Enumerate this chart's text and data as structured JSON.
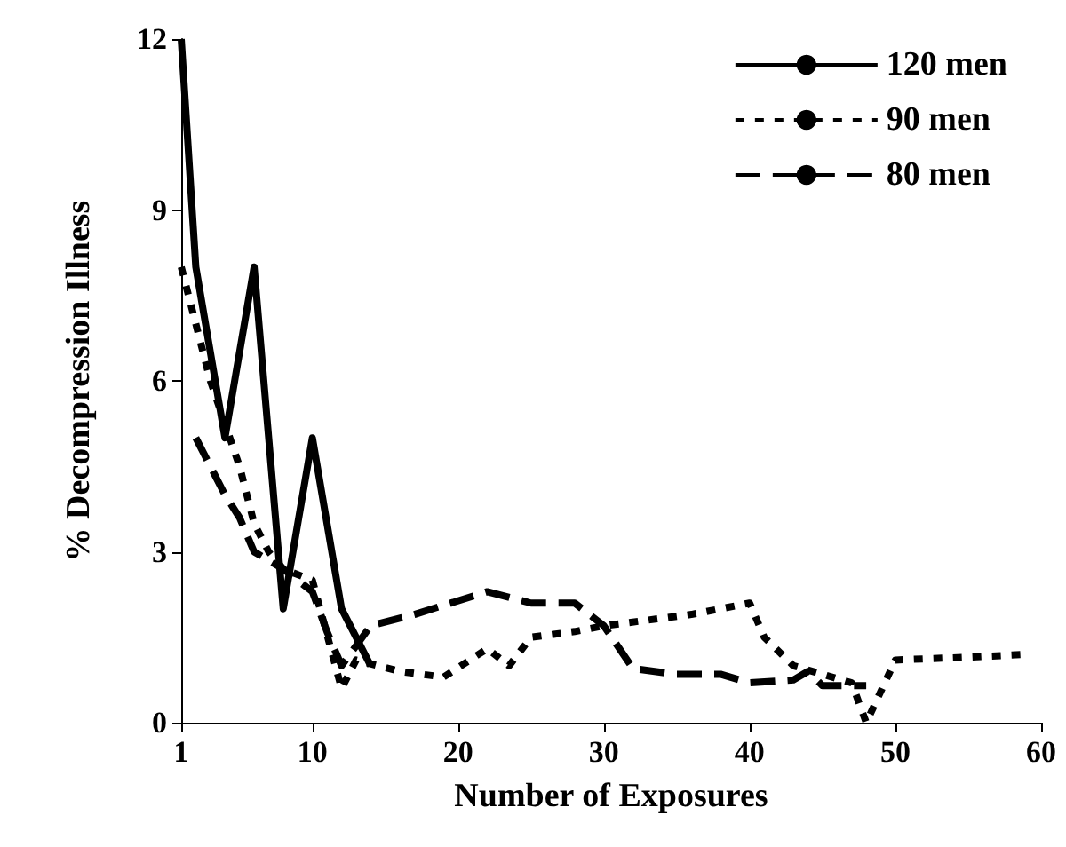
{
  "chart_data": {
    "type": "line",
    "xlabel": "Number of Exposures",
    "ylabel": "% Decompression Illness",
    "xlim": [
      1,
      60
    ],
    "xticks": [
      1,
      10,
      20,
      30,
      40,
      50,
      60
    ],
    "ylim": [
      0,
      12
    ],
    "yticks": [
      0,
      3,
      6,
      9,
      12
    ],
    "grid": false,
    "legend": "top right",
    "marker": "none",
    "series": [
      {
        "name": "120 men",
        "color": "#000000",
        "line_style": "solid",
        "x": [
          1,
          2,
          4,
          6,
          8,
          10,
          12,
          14
        ],
        "values": [
          12,
          8,
          5,
          8,
          2,
          5,
          2,
          1
        ]
      },
      {
        "name": "90 men",
        "color": "#000000",
        "line_style": "dotted",
        "x": [
          1,
          2,
          3,
          5,
          6,
          7,
          8,
          10,
          12,
          13,
          16,
          19,
          22,
          23.5,
          25,
          28,
          30,
          33,
          36,
          40,
          41,
          43,
          47,
          48,
          50,
          55,
          59
        ],
        "values": [
          8,
          7,
          6,
          4.5,
          3.5,
          3,
          2.7,
          2.5,
          0.6,
          1.1,
          0.9,
          0.8,
          1.3,
          1,
          1.5,
          1.6,
          1.7,
          1.8,
          1.9,
          2.1,
          1.5,
          1,
          0.7,
          0,
          1.1,
          1.15,
          1.2
        ]
      },
      {
        "name": "80 men",
        "color": "#000000",
        "line_style": "dashed",
        "x": [
          2,
          4,
          5,
          6,
          8,
          10,
          11,
          12,
          14,
          17,
          22,
          25,
          28,
          30,
          32,
          35,
          38,
          40,
          43,
          44,
          45,
          48
        ],
        "values": [
          5,
          4,
          3.6,
          3,
          2.7,
          2.3,
          1.6,
          1,
          1.7,
          1.9,
          2.3,
          2.1,
          2.1,
          1.7,
          0.95,
          0.85,
          0.85,
          0.7,
          0.75,
          0.9,
          0.65,
          0.65
        ]
      }
    ]
  }
}
